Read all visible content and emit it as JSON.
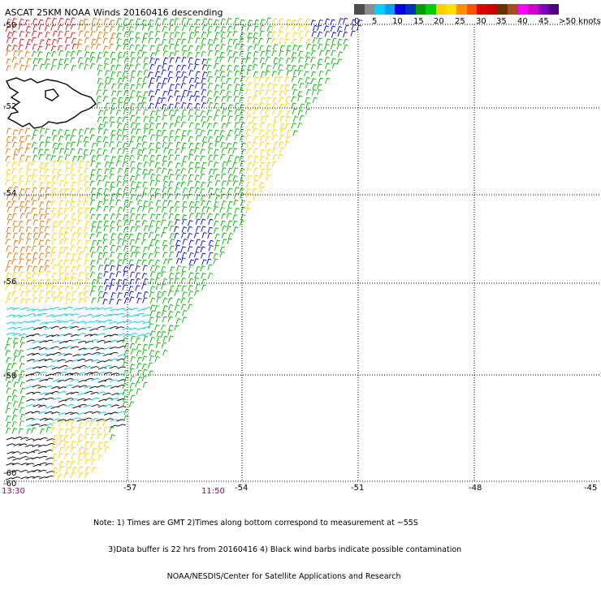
{
  "title": "ASCAT 25KM NOAA Winds 20160416 descending",
  "legend": {
    "colors": [
      "#4d4d4d",
      "#8c8c8c",
      "#00d0ff",
      "#00a0f0",
      "#0000e0",
      "#0030c0",
      "#00a000",
      "#00d000",
      "#ffd000",
      "#ffe000",
      "#ff9000",
      "#ff5000",
      "#e00000",
      "#d00000",
      "#6a3000",
      "#a05020",
      "#ff00ff",
      "#d000d0",
      "#8000c0",
      "#500080"
    ],
    "labels": [
      "0",
      "5",
      "10",
      "15",
      "20",
      "25",
      "30",
      "35",
      "40",
      "45",
      ">50 knots"
    ],
    "label_offsets": [
      0,
      22,
      47,
      73,
      98,
      124,
      150,
      175,
      201,
      227,
      252
    ]
  },
  "x_ticks": [
    "-57",
    "-54",
    "-51",
    "-48",
    "-45"
  ],
  "y_ticks": [
    "-50",
    "-52",
    "-54",
    "-56",
    "-58",
    "-60"
  ],
  "x_corner": "-60",
  "times": [
    "13:30",
    "11:50"
  ],
  "notes": [
    "Note: 1) Times are GMT 2)Times along bottom correspond to measurement at ~55S",
    "      3)Data buffer is 22 hrs from 20160416 4) Black wind barbs indicate possible contamination",
    "                              NOAA/NESDIS/Center for Satellite Applications and Research"
  ],
  "wind_colors": {
    "black": "#000000",
    "cyan": "#00c8f0",
    "blue": "#0000d0",
    "green": "#00b000",
    "yellow": "#ffd000",
    "orange": "#e07000",
    "red": "#d01010",
    "brown": "#a04040"
  }
}
